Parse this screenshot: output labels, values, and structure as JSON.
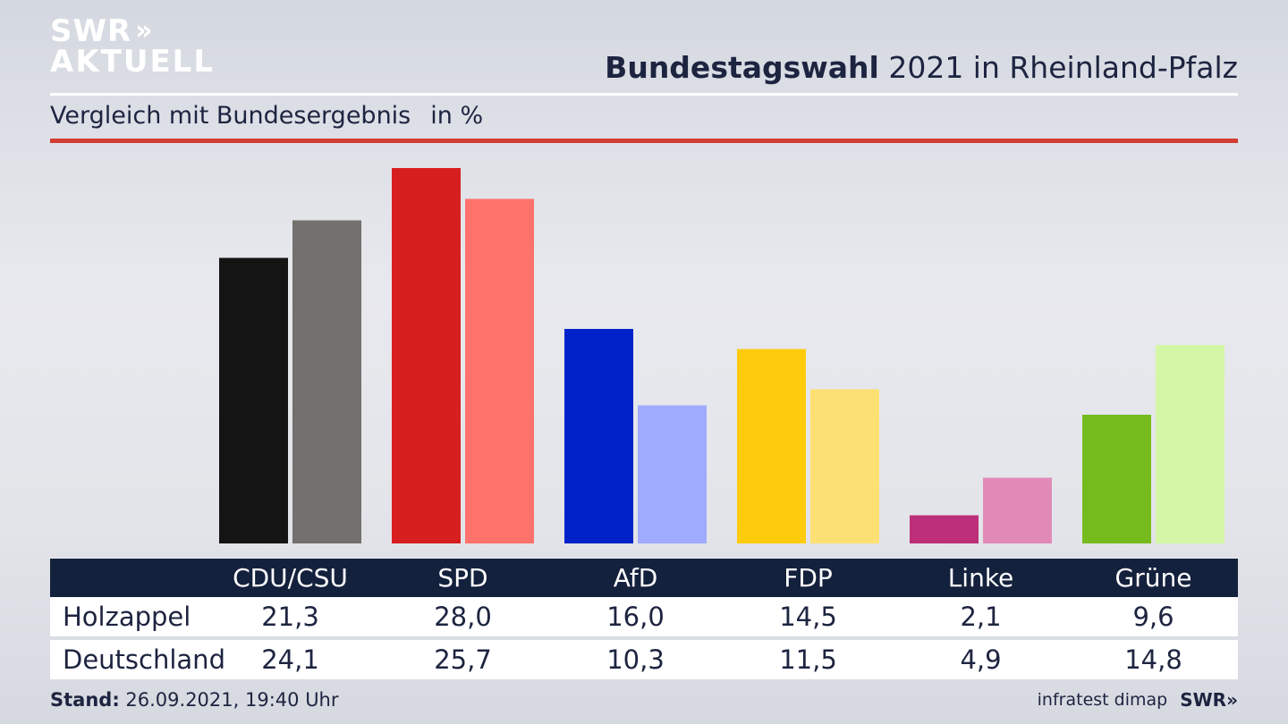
{
  "logo": {
    "line1": "SWR",
    "line2": "AKTUELL",
    "chevrons": "»"
  },
  "header": {
    "title_bold": "Bundestagswahl",
    "title_rest": "2021 in Rheinland-Pfalz"
  },
  "subtitle": {
    "text": "Vergleich mit Bundesergebnis",
    "unit": "in %"
  },
  "footer": {
    "stand_label": "Stand:",
    "stand_value": "26.09.2021, 19:40 Uhr",
    "source": "infratest dimap",
    "brand": "SWR»"
  },
  "colors": {
    "accent_red": "#d23c33",
    "table_header": "#14213d",
    "parties_primary": [
      "#141414",
      "#d71f1f",
      "#0022c8",
      "#ffcb0d",
      "#bd2f78",
      "#76bb1e"
    ],
    "parties_secondary": [
      "#73706d",
      "#ff726b",
      "#9fabff",
      "#fde073",
      "#e18ab8",
      "#d3f7a6"
    ]
  },
  "table": {
    "rows": [
      {
        "label": "Holzappel",
        "values": [
          "21,3",
          "28,0",
          "16,0",
          "14,5",
          "2,1",
          "9,6"
        ]
      },
      {
        "label": "Deutschland",
        "values": [
          "24,1",
          "25,7",
          "10,3",
          "11,5",
          "4,9",
          "14,8"
        ]
      }
    ]
  },
  "chart_data": {
    "type": "bar",
    "categories": [
      "CDU/CSU",
      "SPD",
      "AfD",
      "FDP",
      "Linke",
      "Grüne"
    ],
    "series": [
      {
        "name": "Holzappel",
        "values": [
          21.3,
          28.0,
          16.0,
          14.5,
          2.1,
          9.6
        ]
      },
      {
        "name": "Deutschland",
        "values": [
          24.1,
          25.7,
          10.3,
          11.5,
          4.9,
          14.8
        ]
      }
    ],
    "title": "Bundestagswahl 2021 in Rheinland-Pfalz",
    "subtitle": "Vergleich mit Bundesergebnis",
    "ylabel": "in %",
    "ylim": [
      0,
      28.0
    ],
    "grid": false,
    "legend": "none"
  }
}
